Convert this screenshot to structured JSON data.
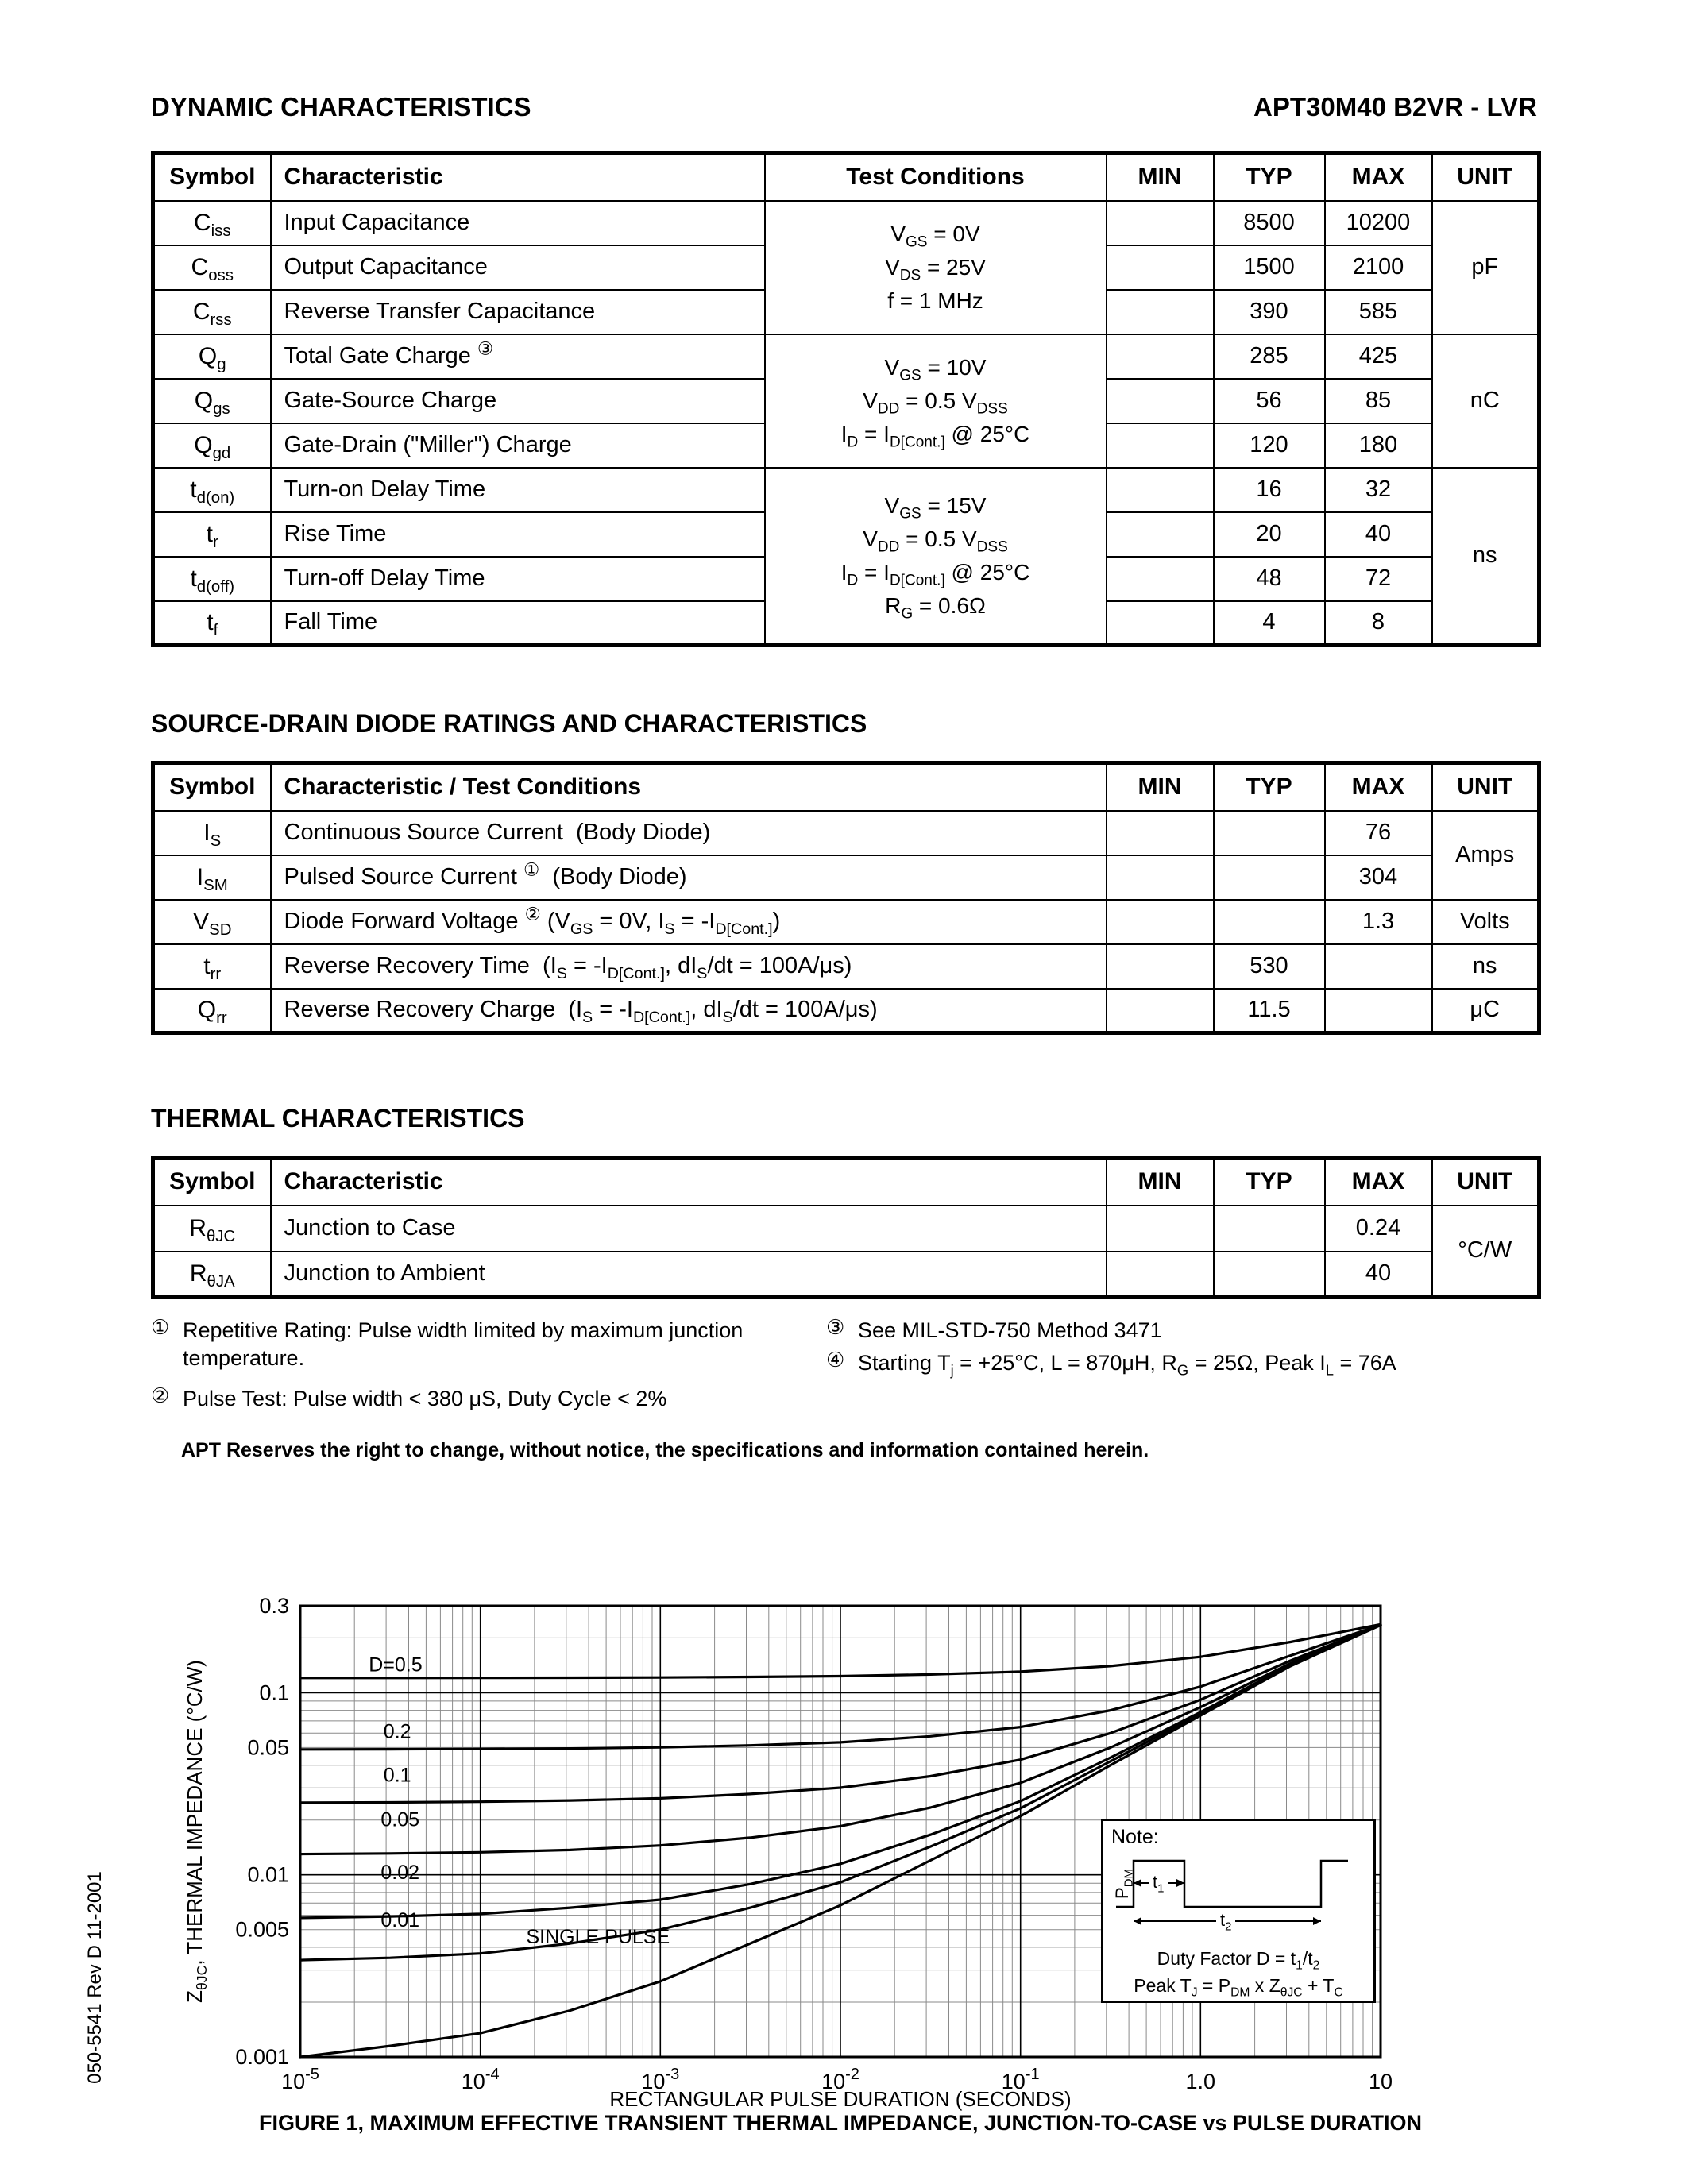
{
  "page": {
    "heading_left": "DYNAMIC CHARACTERISTICS",
    "part_number": "APT30M40 B2VR - LVR",
    "doc_number": "050-5541 Rev D  11-2001",
    "disclaimer": "APT Reserves the right to change, without notice, the specifications and information contained herein."
  },
  "sections": {
    "diode_title": "SOURCE-DRAIN DIODE RATINGS AND CHARACTERISTICS",
    "thermal_title": "THERMAL CHARACTERISTICS",
    "figure_caption": "FIGURE 1, MAXIMUM EFFECTIVE TRANSIENT THERMAL IMPEDANCE, JUNCTION-TO-CASE vs PULSE DURATION"
  },
  "dynamic_table": {
    "headers": {
      "symbol": "Symbol",
      "characteristic": "Characteristic",
      "test_conditions": "Test Conditions",
      "min": "MIN",
      "typ": "TYP",
      "max": "MAX",
      "unit": "UNIT"
    },
    "groups": [
      {
        "test_conditions": "V<sub>GS</sub> = 0V<br>V<sub>DS</sub> = 25V<br>f = 1 MHz",
        "unit": "pF",
        "rows": [
          {
            "symbol": "C<sub>iss</sub>",
            "characteristic": "Input Capacitance",
            "min": "",
            "typ": "8500",
            "max": "10200"
          },
          {
            "symbol": "C<sub>oss</sub>",
            "characteristic": "Output Capacitance",
            "min": "",
            "typ": "1500",
            "max": "2100"
          },
          {
            "symbol": "C<sub>rss</sub>",
            "characteristic": "Reverse Transfer Capacitance",
            "min": "",
            "typ": "390",
            "max": "585"
          }
        ]
      },
      {
        "test_conditions": "V<sub>GS</sub> = 10V<br>V<sub>DD</sub> = 0.5 V<sub>DSS</sub><br>I<sub>D</sub> = I<sub>D[Cont.]</sub> @ 25°C",
        "unit": "nC",
        "rows": [
          {
            "symbol": "Q<sub>g</sub>",
            "characteristic": "Total Gate Charge <sup class='fn'>③</sup>",
            "min": "",
            "typ": "285",
            "max": "425"
          },
          {
            "symbol": "Q<sub>gs</sub>",
            "characteristic": "Gate-Source Charge",
            "min": "",
            "typ": "56",
            "max": "85"
          },
          {
            "symbol": "Q<sub>gd</sub>",
            "characteristic": "Gate-Drain (&quot;Miller&quot;) Charge",
            "min": "",
            "typ": "120",
            "max": "180"
          }
        ]
      },
      {
        "test_conditions": "V<sub>GS</sub> = 15V<br>V<sub>DD</sub> = 0.5 V<sub>DSS</sub><br>I<sub>D</sub> = I<sub>D[Cont.]</sub> @ 25°C<br>R<sub>G</sub> = 0.6Ω",
        "unit": "ns",
        "rows": [
          {
            "symbol": "t<sub>d(on)</sub>",
            "characteristic": "Turn-on Delay Time",
            "min": "",
            "typ": "16",
            "max": "32"
          },
          {
            "symbol": "t<sub>r</sub>",
            "characteristic": "Rise Time",
            "min": "",
            "typ": "20",
            "max": "40"
          },
          {
            "symbol": "t<sub>d(off)</sub>",
            "characteristic": "Turn-off Delay Time",
            "min": "",
            "typ": "48",
            "max": "72"
          },
          {
            "symbol": "t<sub>f</sub>",
            "characteristic": "Fall Time",
            "min": "",
            "typ": "4",
            "max": "8"
          }
        ]
      }
    ]
  },
  "diode_table": {
    "headers": {
      "symbol": "Symbol",
      "characteristic": "Characteristic / Test Conditions",
      "min": "MIN",
      "typ": "TYP",
      "max": "MAX",
      "unit": "UNIT"
    },
    "groups": [
      {
        "unit": "Amps",
        "rows": [
          {
            "symbol": "I<sub>S</sub>",
            "characteristic": "Continuous Source Current&nbsp; (Body Diode)",
            "min": "",
            "typ": "",
            "max": "76"
          },
          {
            "symbol": "I<sub>SM</sub>",
            "characteristic": "Pulsed Source Current <sup class='fn'>①</sup>&nbsp; (Body Diode)",
            "min": "",
            "typ": "",
            "max": "304"
          }
        ]
      },
      {
        "unit": "Volts",
        "rows": [
          {
            "symbol": "V<sub>SD</sub>",
            "characteristic": "Diode Forward Voltage <sup class='fn'>②</sup> (V<sub>GS</sub> = 0V, I<sub>S</sub> = -I<sub>D[Cont.]</sub>)",
            "min": "",
            "typ": "",
            "max": "1.3"
          }
        ]
      },
      {
        "unit": "ns",
        "rows": [
          {
            "symbol": "t<sub>rr</sub>",
            "characteristic": "Reverse Recovery Time&nbsp; (I<sub>S</sub> = -I<sub>D[Cont.]</sub>, dI<sub>S</sub>/dt = 100A/μs)",
            "min": "",
            "typ": "530",
            "max": ""
          }
        ]
      },
      {
        "unit": "μC",
        "rows": [
          {
            "symbol": "Q<sub>rr</sub>",
            "characteristic": "Reverse Recovery Charge&nbsp; (I<sub>S</sub> = -I<sub>D[Cont.]</sub>, dI<sub>S</sub>/dt = 100A/μs)",
            "min": "",
            "typ": "11.5",
            "max": ""
          }
        ]
      }
    ]
  },
  "thermal_table": {
    "headers": {
      "symbol": "Symbol",
      "characteristic": "Characteristic",
      "min": "MIN",
      "typ": "TYP",
      "max": "MAX",
      "unit": "UNIT"
    },
    "groups": [
      {
        "unit": "°C/W",
        "rows": [
          {
            "symbol": "R<sub>θJC</sub>",
            "characteristic": "Junction to Case",
            "min": "",
            "typ": "",
            "max": "0.24"
          },
          {
            "symbol": "R<sub>θJA</sub>",
            "characteristic": "Junction to Ambient",
            "min": "",
            "typ": "",
            "max": "40"
          }
        ]
      }
    ]
  },
  "footnotes": [
    {
      "mark": "①",
      "html": "Repetitive Rating: Pulse width limited by maximum junction temperature."
    },
    {
      "mark": "②",
      "html": "Pulse Test: Pulse width &lt; 380 μS, Duty Cycle &lt; 2%"
    },
    {
      "mark": "③",
      "html": "See MIL-STD-750 Method 3471"
    },
    {
      "mark": "④",
      "html": "Starting T<sub>j</sub> = +25°C, L = 870μH, R<sub>G</sub> = 25Ω, Peak I<sub>L</sub> = 76A"
    }
  ],
  "chart_data": {
    "type": "line",
    "xlabel": "RECTANGULAR PULSE DURATION (SECONDS)",
    "ylabel": "Z<sub>θJC</sub>, THERMAL IMPEDANCE (°C/W)",
    "scale": "log-log",
    "grid": "on",
    "xlim": [
      1e-05,
      10
    ],
    "ylim": [
      0.001,
      0.3
    ],
    "x": [
      1e-05,
      3.16e-05,
      0.0001,
      0.000316,
      0.001,
      0.00316,
      0.01,
      0.0316,
      0.1,
      0.316,
      1,
      3.16,
      10
    ],
    "series": [
      {
        "name": "D=0.5",
        "values": [
          0.1205,
          0.1206,
          0.1207,
          0.1209,
          0.1213,
          0.1221,
          0.1234,
          0.126,
          0.1305,
          0.14,
          0.1575,
          0.19,
          0.2375
        ]
      },
      {
        "name": "0.2",
        "values": [
          0.0488,
          0.0489,
          0.0491,
          0.0494,
          0.0501,
          0.0514,
          0.0534,
          0.0576,
          0.0648,
          0.08,
          0.108,
          0.16,
          0.236
        ]
      },
      {
        "name": "0.1",
        "values": [
          0.0249,
          0.025,
          0.0252,
          0.0256,
          0.0263,
          0.0278,
          0.0301,
          0.0348,
          0.0429,
          0.06,
          0.0915,
          0.15,
          0.2355
        ]
      },
      {
        "name": "0.05",
        "values": [
          0.013,
          0.0131,
          0.0133,
          0.0137,
          0.0145,
          0.016,
          0.0185,
          0.0234,
          0.032,
          0.05,
          0.0833,
          0.145,
          0.2353
        ]
      },
      {
        "name": "0.02",
        "values": [
          0.0058,
          0.0059,
          0.0061,
          0.0066,
          0.0073,
          0.0089,
          0.0115,
          0.0166,
          0.0254,
          0.044,
          0.0783,
          0.142,
          0.2352
        ]
      },
      {
        "name": "0.01",
        "values": [
          0.0034,
          0.0035,
          0.0037,
          0.0042,
          0.005,
          0.0066,
          0.0091,
          0.0143,
          0.0232,
          0.042,
          0.0766,
          0.141,
          0.2351
        ]
      },
      {
        "name": "SINGLE PULSE",
        "values": [
          0.001,
          0.00115,
          0.00135,
          0.0018,
          0.0026,
          0.0042,
          0.0068,
          0.012,
          0.021,
          0.04,
          0.075,
          0.14,
          0.235
        ]
      }
    ],
    "x_ticks": [
      {
        "v": 1e-05,
        "base": "10",
        "exp": "-5"
      },
      {
        "v": 0.0001,
        "base": "10",
        "exp": "-4"
      },
      {
        "v": 0.001,
        "base": "10",
        "exp": "-3"
      },
      {
        "v": 0.01,
        "base": "10",
        "exp": "-2"
      },
      {
        "v": 0.1,
        "base": "10",
        "exp": "-1"
      },
      {
        "v": 1,
        "base": "1.0",
        "exp": ""
      },
      {
        "v": 10,
        "base": "10",
        "exp": ""
      }
    ],
    "y_ticks": [
      {
        "v": 0.3,
        "label": "0.3"
      },
      {
        "v": 0.1,
        "label": "0.1"
      },
      {
        "v": 0.05,
        "label": "0.05"
      },
      {
        "v": 0.01,
        "label": "0.01"
      },
      {
        "v": 0.005,
        "label": "0.005"
      },
      {
        "v": 0.001,
        "label": "0.001"
      }
    ],
    "curve_labels": [
      {
        "text": "D=0.5",
        "x": 2.4e-05,
        "y": 0.131
      },
      {
        "text": "0.2",
        "x": 2.9e-05,
        "y": 0.0565
      },
      {
        "text": "0.1",
        "x": 2.9e-05,
        "y": 0.0325
      },
      {
        "text": "0.05",
        "x": 2.8e-05,
        "y": 0.0185
      },
      {
        "text": "0.02",
        "x": 2.8e-05,
        "y": 0.0095
      },
      {
        "text": "0.01",
        "x": 2.8e-05,
        "y": 0.0052
      },
      {
        "text": "SINGLE PULSE",
        "x": 0.00018,
        "y": 0.0042
      }
    ],
    "note": {
      "title": "Note:",
      "pdm_label": "P<sub>DM</sub>",
      "t1_label": "t<sub>1</sub>",
      "t2_label": "t<sub>2</sub>",
      "duty_line": "Duty Factor  D = t<sub>1</sub>/t<sub>2</sub>",
      "peak_line": "Peak T<sub>J</sub> = P<sub>DM</sub> x Z<sub>θJC</sub> + T<sub>C</sub>"
    }
  }
}
